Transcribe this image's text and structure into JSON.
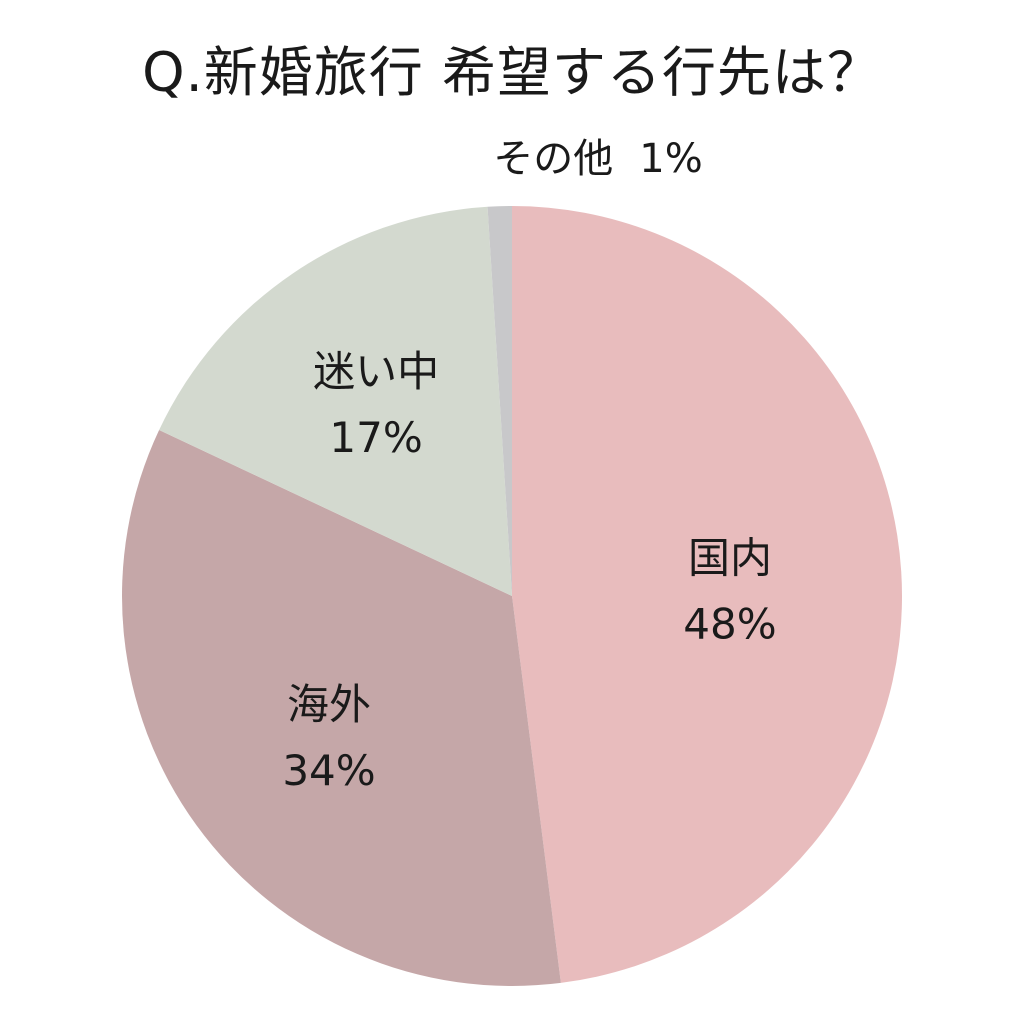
{
  "chart_data": {
    "type": "pie",
    "title": "Q.新婚旅行 希望する行先は？",
    "slices": [
      {
        "category": "国内",
        "value": 48,
        "value_label": "48%",
        "color": "#e8bcbd",
        "label_position": "inside"
      },
      {
        "category": "海外",
        "value": 34,
        "value_label": "34%",
        "color": "#c5a7a8",
        "label_position": "inside"
      },
      {
        "category": "迷い中",
        "value": 17,
        "value_label": "17%",
        "color": "#d3d9cf",
        "label_position": "inside"
      },
      {
        "category": "その他",
        "value": 1,
        "value_label": "1%",
        "color": "#c8c8ca",
        "label_position": "outside"
      }
    ],
    "legend": "none",
    "start_angle": "12 o'clock",
    "direction": "clockwise"
  }
}
